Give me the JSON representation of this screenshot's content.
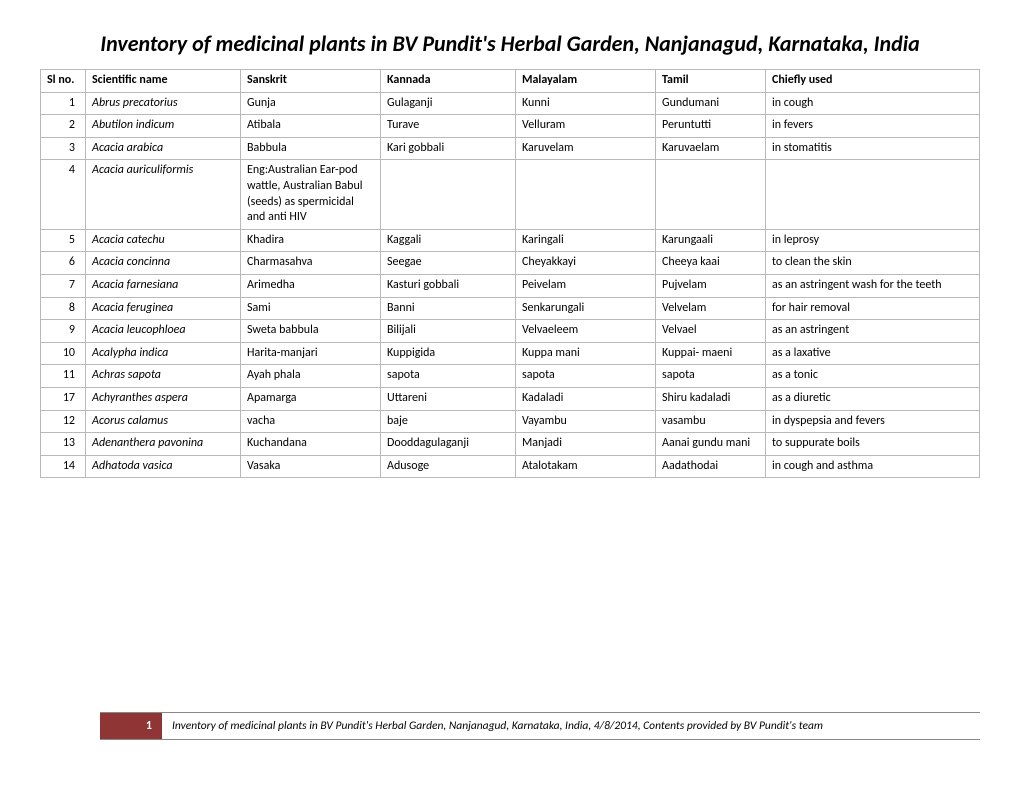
{
  "title": "Inventory of medicinal plants in BV Pundit's Herbal Garden, Nanjanagud, Karnataka, India",
  "table": {
    "headers": {
      "slno": "Sl no.",
      "sci": "Scientific name",
      "san": "Sanskrit",
      "kan": "Kannada",
      "mal": "Malayalam",
      "tam": "Tamil",
      "use": "Chiefly used"
    },
    "rows": [
      {
        "slno": "1",
        "sci": "Abrus precatorius",
        "san": "Gunja",
        "kan": "Gulaganji",
        "mal": "Kunni",
        "tam": "Gundumani",
        "use": "in cough"
      },
      {
        "slno": "2",
        "sci": "Abutilon indicum",
        "san": "Atibala",
        "kan": "Turave",
        "mal": "Velluram",
        "tam": "Peruntutti",
        "use": "in fevers"
      },
      {
        "slno": "3",
        "sci": "Acacia arabica",
        "san": "Babbula",
        "kan": "Kari gobbali",
        "mal": "Karuvelam",
        "tam": "Karuvaelam",
        "use": "in stomatitis"
      },
      {
        "slno": "4",
        "sci": "Acacia auriculiformis",
        "san": "Eng:Australian Ear-pod wattle,   Australian Babul (seeds) as spermicidal and anti HIV",
        "kan": "",
        "mal": "",
        "tam": "",
        "use": ""
      },
      {
        "slno": "5",
        "sci": "Acacia catechu",
        "san": "Khadira",
        "kan": "Kaggali",
        "mal": "Karingali",
        "tam": "Karungaali",
        "use": "in leprosy"
      },
      {
        "slno": "6",
        "sci": "Acacia concinna",
        "san": "Charmasahva",
        "kan": "Seegae",
        "mal": "Cheyakkayi",
        "tam": "Cheeya kaai",
        "use": "to clean the skin"
      },
      {
        "slno": "7",
        "sci": "Acacia farnesiana",
        "san": "Arimedha",
        "kan": "Kasturi gobbali",
        "mal": "Peivelam",
        "tam": "Pujvelam",
        "use": "as an astringent wash for the teeth"
      },
      {
        "slno": "8",
        "sci": "Acacia feruginea",
        "san": "Sami",
        "kan": "Banni",
        "mal": "Senkarungali",
        "tam": "Velvelam",
        "use": "for hair removal"
      },
      {
        "slno": "9",
        "sci": "Acacia leucophloea",
        "san": "Sweta babbula",
        "kan": "Bilijali",
        "mal": "Velvaeleem",
        "tam": "Velvael",
        "use": "as an astringent"
      },
      {
        "slno": "10",
        "sci": "Acalypha indica",
        "san": "Harita-manjari",
        "kan": "Kuppigida",
        "mal": "Kuppa mani",
        "tam": "Kuppai- maeni",
        "use": "as a laxative"
      },
      {
        "slno": "11",
        "sci": "Achras sapota",
        "san": "Ayah phala",
        "kan": "sapota",
        "mal": "sapota",
        "tam": "sapota",
        "use": "as a tonic"
      },
      {
        "slno": "17",
        "sci": "Achyranthes aspera",
        "san": "Apamarga",
        "kan": "Uttareni",
        "mal": "Kadaladi",
        "tam": "Shiru kadaladi",
        "use": "as a diuretic"
      },
      {
        "slno": "12",
        "sci": "Acorus calamus",
        "san": "vacha",
        "kan": "baje",
        "mal": "Vayambu",
        "tam": "vasambu",
        "use": "in dyspepsia and fevers"
      },
      {
        "slno": "13",
        "sci": "Adenanthera pavonina",
        "san": "Kuchandana",
        "kan": "Dooddagulaganji",
        "mal": "Manjadi",
        "tam": "Aanai gundu mani",
        "use": "to suppurate boils"
      },
      {
        "slno": "14",
        "sci": "Adhatoda vasica",
        "san": "Vasaka",
        "kan": "Adusoge",
        "mal": "Atalotakam",
        "tam": "Aadathodai",
        "use": "in cough and asthma"
      }
    ]
  },
  "footer": {
    "page": "1",
    "text": "Inventory of medicinal plants in BV Pundit's Herbal Garden, Nanjanagud, Karnataka, India, 4/8/2014, Contents provided by BV Pundit's team"
  }
}
